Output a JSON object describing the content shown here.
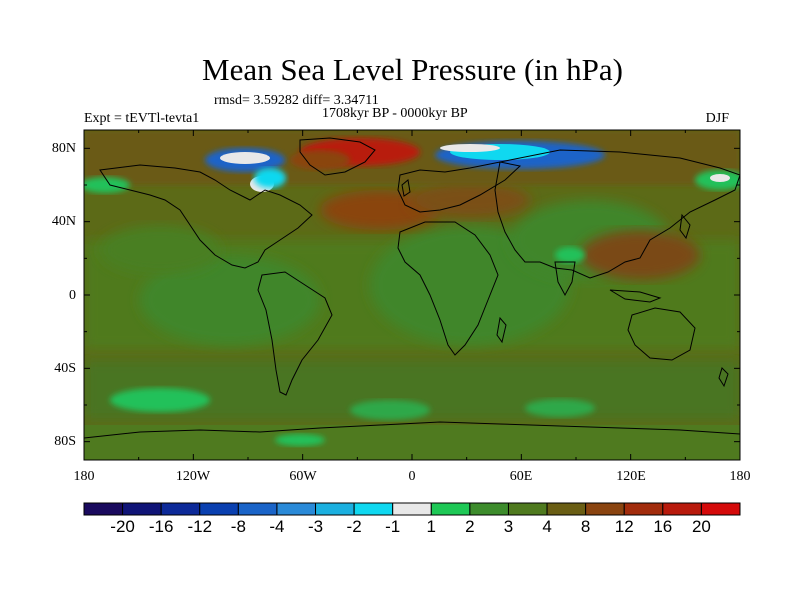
{
  "title": "Mean Sea Level Pressure (in hPa)",
  "stats": "rmsd= 3.59282 diff= 3.34711",
  "period": "1708kyr BP - 0000kyr BP",
  "experiment": "Expt = tEVTl-tevta1",
  "season": "DJF",
  "map": {
    "lat_ticks": [
      "80N",
      "40N",
      "0",
      "40S",
      "80S"
    ],
    "lon_ticks": [
      "180",
      "120W",
      "60W",
      "0",
      "60E",
      "120E",
      "180"
    ]
  },
  "colorbar": {
    "labels": [
      "-20",
      "-16",
      "-12",
      "-8",
      "-4",
      "-3",
      "-2",
      "-1",
      "1",
      "2",
      "3",
      "4",
      "8",
      "12",
      "16",
      "20"
    ],
    "colors": [
      "#1a0a5e",
      "#101477",
      "#0d2a99",
      "#0a40b0",
      "#1a64c8",
      "#2a8ad8",
      "#1bb0e0",
      "#10d8f0",
      "#e8e8e8",
      "#1ec856",
      "#3d8c2c",
      "#4f7a1f",
      "#6a5e14",
      "#8a4410",
      "#a22c0c",
      "#b81a0c",
      "#d40a0a"
    ]
  },
  "palette": {
    "ocean_low": "#3d8c2c",
    "land_mid": "#4f7a1f",
    "brown": "#6a5e14",
    "rust": "#8a4410",
    "red": "#b81a0c"
  }
}
